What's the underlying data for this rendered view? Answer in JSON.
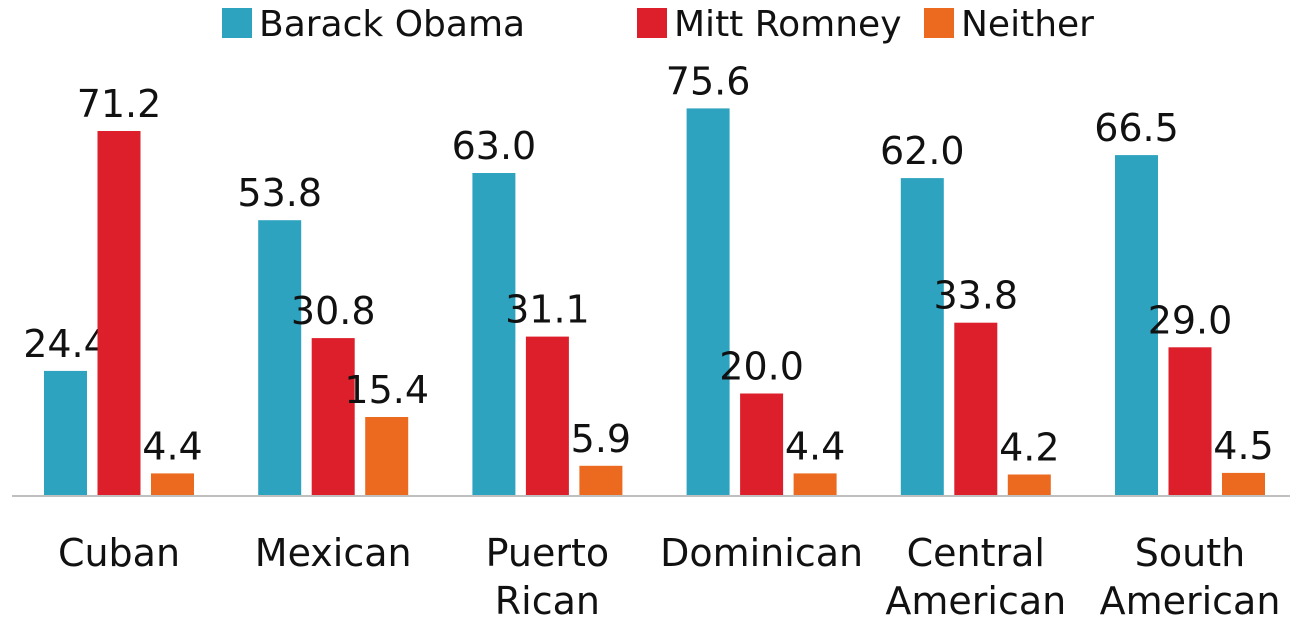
{
  "chart_data": {
    "type": "bar",
    "categories": [
      [
        "Cuban"
      ],
      [
        "Mexican"
      ],
      [
        "Puerto",
        "Rican"
      ],
      [
        "Dominican"
      ],
      [
        "Central",
        "American"
      ],
      [
        "South",
        "American"
      ]
    ],
    "series": [
      {
        "name": "Barack Obama",
        "color": "#2ea3bf",
        "values": [
          24.4,
          53.8,
          63.0,
          75.6,
          62.0,
          66.5
        ],
        "labels": [
          "24.4",
          "53.8",
          "63.0",
          "75.6",
          "62.0",
          "66.5"
        ]
      },
      {
        "name": "Mitt Romney",
        "color": "#dc1f2a",
        "values": [
          71.2,
          30.8,
          31.1,
          20.0,
          33.8,
          29.0
        ],
        "labels": [
          "71.2",
          "30.8",
          "31.1",
          "20.0",
          "33.8",
          "29.0"
        ]
      },
      {
        "name": "Neither",
        "color": "#ec6a1f",
        "values": [
          4.4,
          15.4,
          5.9,
          4.4,
          4.2,
          4.5
        ],
        "labels": [
          "4.4",
          "15.4",
          "5.9",
          "4.4",
          "4.2",
          "4.5"
        ]
      }
    ],
    "ylim": [
      0,
      80
    ],
    "grid": false,
    "legend_position": "top-center"
  }
}
